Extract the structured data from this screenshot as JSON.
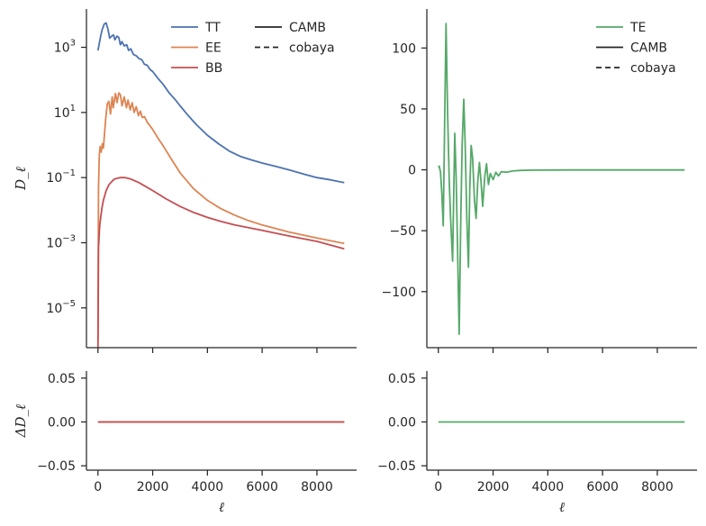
{
  "chart_data": [
    {
      "panel": "top-left",
      "type": "line",
      "ylabel": "D_ℓ",
      "yscale": "log",
      "ylim": [
        6e-07,
        15000
      ],
      "xlim": [
        -420,
        9450
      ],
      "yticks": [
        {
          "label": "10^3",
          "base": "10",
          "exp": "3",
          "value": 1000
        },
        {
          "label": "10^1",
          "base": "10",
          "exp": "1",
          "value": 10
        },
        {
          "label": "10^-1",
          "base": "10",
          "exp": "−1",
          "value": 0.1
        },
        {
          "label": "10^-3",
          "base": "10",
          "exp": "−3",
          "value": 0.001
        },
        {
          "label": "10^-5",
          "base": "10",
          "exp": "−5",
          "value": 1e-05
        }
      ],
      "xticks": [
        0,
        2000,
        4000,
        6000,
        8000
      ],
      "legend": {
        "placement": "top-right",
        "columns": [
          [
            "TT",
            "EE",
            "BB"
          ],
          [
            "CAMB",
            "cobaya"
          ]
        ]
      },
      "series": [
        {
          "name": "TT",
          "color": "#4c72b0",
          "x": [
            2,
            40,
            100,
            160,
            230,
            300,
            370,
            430,
            500,
            570,
            620,
            700,
            760,
            820,
            880,
            960,
            1050,
            1120,
            1200,
            1300,
            1400,
            1500,
            1600,
            1700,
            1800,
            1900,
            2000,
            2200,
            2400,
            2600,
            2800,
            3000,
            3300,
            3600,
            4000,
            4400,
            4800,
            5200,
            5600,
            6000,
            6500,
            7000,
            7500,
            8000,
            8500,
            9000
          ],
          "y": [
            800,
            1200,
            2200,
            3600,
            5200,
            5600,
            3500,
            1900,
            2200,
            2400,
            1700,
            2200,
            2000,
            1200,
            1500,
            1100,
            1200,
            800,
            900,
            600,
            550,
            450,
            420,
            300,
            280,
            210,
            180,
            110,
            70,
            40,
            26,
            16,
            8,
            4.2,
            2.0,
            1.1,
            0.65,
            0.45,
            0.35,
            0.28,
            0.22,
            0.17,
            0.13,
            0.1,
            0.085,
            0.07
          ]
        },
        {
          "name": "EE",
          "color": "#dd8452",
          "x": [
            2,
            20,
            50,
            80,
            120,
            160,
            200,
            280,
            340,
            400,
            460,
            520,
            560,
            640,
            700,
            760,
            820,
            880,
            960,
            1040,
            1100,
            1180,
            1250,
            1320,
            1400,
            1480,
            1550,
            1620,
            1700,
            1800,
            2000,
            2200,
            2400,
            2700,
            3000,
            3500,
            4000,
            4500,
            5000,
            5500,
            6000,
            7000,
            8000,
            9000
          ],
          "y": [
            1e-06,
            0.05,
            0.5,
            0.9,
            0.6,
            1.1,
            0.8,
            6,
            18,
            22,
            9,
            30,
            14,
            38,
            20,
            40,
            35,
            16,
            30,
            14,
            24,
            12,
            20,
            10,
            15,
            8,
            11,
            7,
            7.5,
            5,
            3,
            1.6,
            0.9,
            0.35,
            0.14,
            0.045,
            0.02,
            0.011,
            0.007,
            0.0048,
            0.0035,
            0.0021,
            0.0014,
            0.00095
          ]
        },
        {
          "name": "BB",
          "color": "#c44e52",
          "x": [
            2,
            20,
            60,
            100,
            150,
            200,
            300,
            400,
            500,
            600,
            800,
            1000,
            1200,
            1500,
            2000,
            2500,
            3000,
            3500,
            4000,
            4500,
            5000,
            6000,
            7000,
            8000,
            9000
          ],
          "y": [
            6e-07,
            0.0007,
            0.003,
            0.006,
            0.012,
            0.02,
            0.04,
            0.06,
            0.075,
            0.09,
            0.1,
            0.1,
            0.09,
            0.07,
            0.04,
            0.022,
            0.013,
            0.0085,
            0.006,
            0.0045,
            0.0035,
            0.0024,
            0.0016,
            0.0011,
            0.00065
          ]
        }
      ]
    },
    {
      "panel": "top-right",
      "type": "line",
      "ylim": [
        -146,
        132
      ],
      "xlim": [
        -420,
        9450
      ],
      "yticks": [
        100,
        50,
        0,
        -50,
        -100
      ],
      "ytick_labels": [
        "100",
        "50",
        "0",
        "−50",
        "−100"
      ],
      "xticks": [
        0,
        2000,
        4000,
        6000,
        8000
      ],
      "legend": {
        "placement": "top-right",
        "entries": [
          "TE",
          "CAMB",
          "cobaya"
        ]
      },
      "series": [
        {
          "name": "TE",
          "color": "#55a868",
          "x": [
            2,
            30,
            80,
            130,
            180,
            230,
            280,
            340,
            400,
            450,
            520,
            600,
            650,
            700,
            760,
            820,
            870,
            930,
            980,
            1040,
            1100,
            1150,
            1200,
            1250,
            1320,
            1380,
            1440,
            1500,
            1560,
            1620,
            1700,
            1760,
            1830,
            1900,
            2000,
            2100,
            2200,
            2300,
            2500,
            2700,
            3000,
            3500,
            4000,
            5000,
            6000,
            7000,
            8000,
            9000
          ],
          "y": [
            2,
            3,
            -2,
            -20,
            -46,
            40,
            120,
            45,
            -10,
            -40,
            -75,
            30,
            -5,
            -60,
            -135,
            -40,
            20,
            58,
            20,
            -40,
            -80,
            -15,
            20,
            10,
            -25,
            -40,
            -10,
            6,
            -10,
            -30,
            -5,
            5,
            -12,
            -3,
            -8,
            -2,
            -5,
            -1.5,
            -2,
            -1,
            -0.5,
            -0.3,
            -0.2,
            -0.1,
            -0.1,
            -0.1,
            -0.1,
            -0.1
          ]
        }
      ]
    },
    {
      "panel": "bottom-left",
      "type": "line",
      "ylabel": "ΔD_ℓ",
      "xlabel": "ℓ",
      "ylim": [
        -0.055,
        0.058
      ],
      "xlim": [
        -420,
        9450
      ],
      "yticks": [
        0.05,
        0.0,
        -0.05
      ],
      "ytick_labels": [
        "0.05",
        "0.00",
        "−0.05"
      ],
      "xticks": [
        0,
        2000,
        4000,
        6000,
        8000
      ],
      "xtick_labels": [
        "0",
        "2000",
        "4000",
        "6000",
        "8000"
      ],
      "series": [
        {
          "name": "TT",
          "color": "#4c72b0",
          "x": [
            2,
            9000
          ],
          "y": [
            0,
            0
          ]
        },
        {
          "name": "EE",
          "color": "#dd8452",
          "x": [
            2,
            9000
          ],
          "y": [
            0,
            0
          ]
        },
        {
          "name": "BB",
          "color": "#c44e52",
          "x": [
            2,
            9000
          ],
          "y": [
            0,
            0
          ]
        }
      ]
    },
    {
      "panel": "bottom-right",
      "type": "line",
      "xlabel": "ℓ",
      "ylim": [
        -0.055,
        0.058
      ],
      "xlim": [
        -420,
        9450
      ],
      "yticks": [
        0.05,
        0.0,
        -0.05
      ],
      "ytick_labels": [
        "0.05",
        "0.00",
        "−0.05"
      ],
      "xticks": [
        0,
        2000,
        4000,
        6000,
        8000
      ],
      "xtick_labels": [
        "0",
        "2000",
        "4000",
        "6000",
        "8000"
      ],
      "series": [
        {
          "name": "TE",
          "color": "#55a868",
          "x": [
            2,
            9000
          ],
          "y": [
            0,
            0
          ]
        }
      ]
    }
  ]
}
